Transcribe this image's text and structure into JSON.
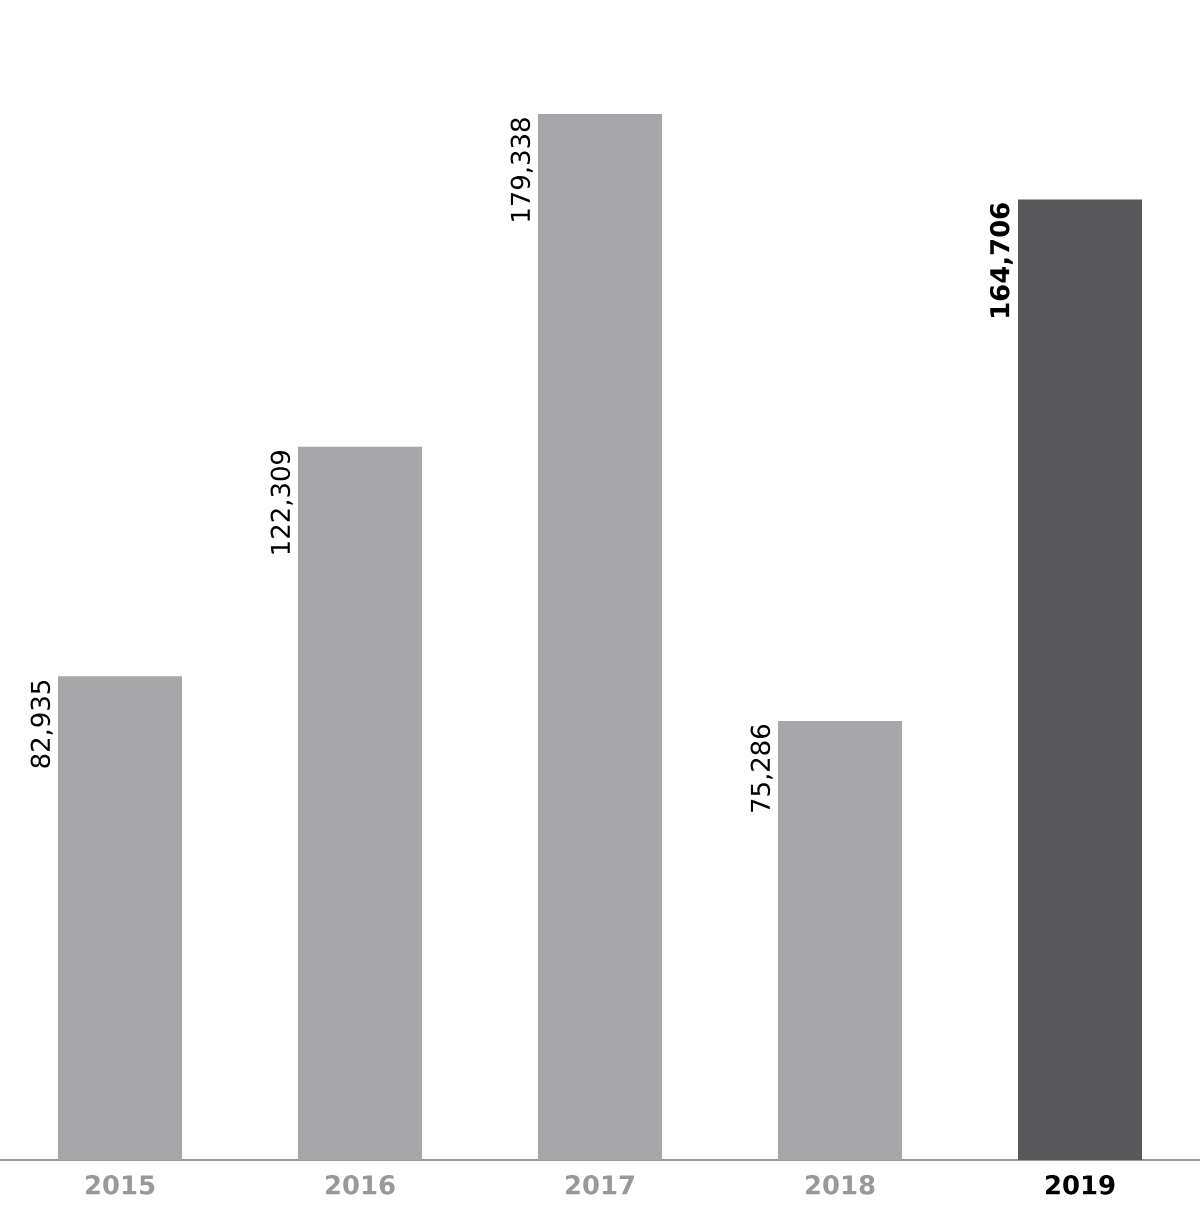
{
  "chart_data": {
    "type": "bar",
    "categories": [
      "2015",
      "2016",
      "2017",
      "2018",
      "2019"
    ],
    "values": [
      82935,
      122309,
      179338,
      75286,
      164706
    ],
    "value_labels": [
      "82,935",
      "122,309",
      "179,338",
      "75,286",
      "164,706"
    ],
    "colors": [
      "#a7a7a9",
      "#a7a7a9",
      "#a7a7a9",
      "#a7a7a9",
      "#58585a"
    ]
  }
}
